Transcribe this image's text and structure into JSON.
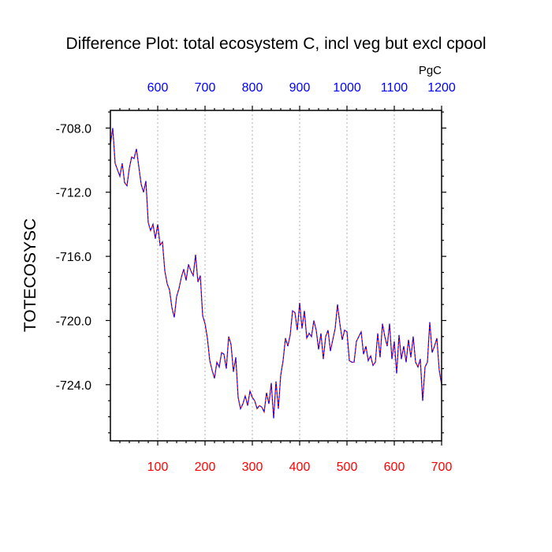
{
  "chart_data": {
    "type": "line",
    "title": "Difference Plot: total ecosystem C, incl veg but excl cpool",
    "ylabel": "TOTECOSYSC",
    "units": "PgC",
    "xlim": [
      0,
      700
    ],
    "ylim": [
      -727.5,
      -706.9
    ],
    "bottom_axis": {
      "ticks": [
        100,
        200,
        300,
        400,
        500,
        600,
        700
      ],
      "labels": [
        "100",
        "200",
        "300",
        "400",
        "500",
        "600",
        "700"
      ],
      "label_color": "#ff0000"
    },
    "top_axis": {
      "ticks": [
        600,
        700,
        800,
        900,
        1000,
        1100,
        1200
      ],
      "labels": [
        "600",
        "700",
        "800",
        "900",
        "1000",
        "1100",
        "1200"
      ],
      "range": [
        500,
        1200
      ],
      "label_color": "#0000ff"
    },
    "y_ticks": [
      -708,
      -712,
      -716,
      -720,
      -724
    ],
    "y_tick_labels": [
      "-708.0",
      "-712.0",
      "-716.0",
      "-720.0",
      "-724.0"
    ],
    "grid": "vertical dotted at bottom-axis ticks",
    "series": [
      {
        "name": "series-red",
        "color": "#ff0000",
        "dash": "dashed",
        "x": [
          0,
          5,
          10,
          15,
          20,
          25,
          30,
          35,
          40,
          45,
          50,
          55,
          60,
          65,
          70,
          75,
          80,
          85,
          90,
          95,
          100,
          105,
          110,
          115,
          120,
          125,
          130,
          135,
          140,
          145,
          150,
          155,
          160,
          165,
          170,
          175,
          180,
          185,
          190,
          195,
          200,
          205,
          210,
          215,
          220,
          225,
          230,
          235,
          240,
          245,
          250,
          255,
          260,
          265,
          270,
          275,
          280,
          285,
          290,
          295,
          300,
          305,
          310,
          315,
          320,
          325,
          330,
          335,
          340,
          345,
          350,
          355,
          360,
          365,
          370,
          375,
          380,
          385,
          390,
          395,
          400,
          405,
          410,
          415,
          420,
          425,
          430,
          435,
          440,
          445,
          450,
          455,
          460,
          465,
          470,
          475,
          480,
          485,
          490,
          495,
          500,
          505,
          510,
          515,
          520,
          525,
          530,
          535,
          540,
          545,
          550,
          555,
          560,
          565,
          570,
          575,
          580,
          585,
          590,
          595,
          600,
          605,
          610,
          615,
          620,
          625,
          630,
          635,
          640,
          645,
          650,
          655,
          660,
          665,
          670,
          675,
          680,
          685,
          690,
          695,
          700
        ],
        "values": [
          -709.0,
          -708.0,
          -710.2,
          -710.6,
          -711.0,
          -710.2,
          -711.4,
          -711.6,
          -710.5,
          -709.8,
          -709.9,
          -709.3,
          -710.4,
          -711.5,
          -712.0,
          -711.3,
          -713.9,
          -714.4,
          -714.0,
          -714.9,
          -714.0,
          -715.3,
          -715.1,
          -716.9,
          -717.7,
          -718.1,
          -719.2,
          -719.8,
          -718.5,
          -718.0,
          -717.3,
          -716.8,
          -717.5,
          -716.5,
          -716.9,
          -717.2,
          -715.9,
          -717.6,
          -717.2,
          -719.7,
          -720.2,
          -721.1,
          -722.5,
          -723.1,
          -723.6,
          -722.6,
          -722.9,
          -722.0,
          -722.1,
          -723.0,
          -721.0,
          -721.5,
          -723.2,
          -722.3,
          -724.8,
          -725.5,
          -725.2,
          -724.7,
          -725.3,
          -724.4,
          -724.8,
          -725.0,
          -725.5,
          -725.3,
          -725.4,
          -725.7,
          -724.5,
          -725.2,
          -723.9,
          -726.1,
          -723.8,
          -725.5,
          -723.4,
          -722.5,
          -721.1,
          -721.6,
          -720.9,
          -719.4,
          -719.5,
          -720.6,
          -718.9,
          -720.5,
          -719.4,
          -721.1,
          -720.8,
          -721.0,
          -720.0,
          -720.6,
          -721.8,
          -720.8,
          -722.4,
          -721.0,
          -720.6,
          -721.9,
          -721.2,
          -720.5,
          -719.0,
          -720.2,
          -721.2,
          -720.6,
          -720.7,
          -722.5,
          -722.6,
          -722.6,
          -721.3,
          -721.0,
          -720.7,
          -722.1,
          -721.6,
          -722.5,
          -722.2,
          -722.8,
          -722.6,
          -720.8,
          -722.3,
          -720.2,
          -721.0,
          -721.6,
          -720.2,
          -722.4,
          -721.3,
          -723.3,
          -720.9,
          -722.4,
          -721.6,
          -722.6,
          -721.2,
          -722.3,
          -721.0,
          -722.6,
          -722.9,
          -722.4,
          -725.0,
          -722.9,
          -722.6,
          -720.1,
          -722.0,
          -721.6,
          -721.1,
          -723.1,
          -724.0
        ]
      },
      {
        "name": "series-blue",
        "color": "#0000ff",
        "dash": "dashed",
        "x": [
          0,
          5,
          10,
          15,
          20,
          25,
          30,
          35,
          40,
          45,
          50,
          55,
          60,
          65,
          70,
          75,
          80,
          85,
          90,
          95,
          100,
          105,
          110,
          115,
          120,
          125,
          130,
          135,
          140,
          145,
          150,
          155,
          160,
          165,
          170,
          175,
          180,
          185,
          190,
          195,
          200,
          205,
          210,
          215,
          220,
          225,
          230,
          235,
          240,
          245,
          250,
          255,
          260,
          265,
          270,
          275,
          280,
          285,
          290,
          295,
          300,
          305,
          310,
          315,
          320,
          325,
          330,
          335,
          340,
          345,
          350,
          355,
          360,
          365,
          370,
          375,
          380,
          385,
          390,
          395,
          400,
          405,
          410,
          415,
          420,
          425,
          430,
          435,
          440,
          445,
          450,
          455,
          460,
          465,
          470,
          475,
          480,
          485,
          490,
          495,
          500,
          505,
          510,
          515,
          520,
          525,
          530,
          535,
          540,
          545,
          550,
          555,
          560,
          565,
          570,
          575,
          580,
          585,
          590,
          595,
          600,
          605,
          610,
          615,
          620,
          625,
          630,
          635,
          640,
          645,
          650,
          655,
          660,
          665,
          670,
          675,
          680,
          685,
          690,
          695,
          700
        ],
        "values": [
          -709.0,
          -708.0,
          -710.2,
          -710.6,
          -711.0,
          -710.2,
          -711.4,
          -711.6,
          -710.5,
          -709.8,
          -709.9,
          -709.3,
          -710.4,
          -711.5,
          -712.0,
          -711.3,
          -713.9,
          -714.4,
          -714.0,
          -714.9,
          -714.0,
          -715.3,
          -715.1,
          -716.9,
          -717.7,
          -718.1,
          -719.2,
          -719.8,
          -718.5,
          -718.0,
          -717.3,
          -716.8,
          -717.5,
          -716.5,
          -716.9,
          -717.2,
          -715.9,
          -717.6,
          -717.2,
          -719.7,
          -720.2,
          -721.1,
          -722.5,
          -723.1,
          -723.6,
          -722.6,
          -722.9,
          -722.0,
          -722.1,
          -723.0,
          -721.0,
          -721.5,
          -723.2,
          -722.3,
          -724.8,
          -725.5,
          -725.2,
          -724.7,
          -725.3,
          -724.4,
          -724.8,
          -725.0,
          -725.5,
          -725.3,
          -725.4,
          -725.7,
          -724.5,
          -725.2,
          -723.9,
          -726.1,
          -723.8,
          -725.5,
          -723.4,
          -722.5,
          -721.1,
          -721.6,
          -720.9,
          -719.4,
          -719.5,
          -720.6,
          -718.9,
          -720.5,
          -719.4,
          -721.1,
          -720.8,
          -721.0,
          -720.0,
          -720.6,
          -721.8,
          -720.8,
          -722.4,
          -721.0,
          -720.6,
          -721.9,
          -721.2,
          -720.5,
          -719.0,
          -720.2,
          -721.2,
          -720.6,
          -720.7,
          -722.5,
          -722.6,
          -722.6,
          -721.3,
          -721.0,
          -720.7,
          -722.1,
          -721.6,
          -722.5,
          -722.2,
          -722.8,
          -722.6,
          -720.8,
          -722.3,
          -720.2,
          -721.0,
          -721.6,
          -720.2,
          -722.4,
          -721.3,
          -723.3,
          -720.9,
          -722.4,
          -721.6,
          -722.6,
          -721.2,
          -722.3,
          -721.0,
          -722.6,
          -722.9,
          -722.4,
          -725.0,
          -722.9,
          -722.6,
          -720.1,
          -722.0,
          -721.6,
          -721.1,
          -723.1,
          -724.0
        ]
      }
    ]
  }
}
